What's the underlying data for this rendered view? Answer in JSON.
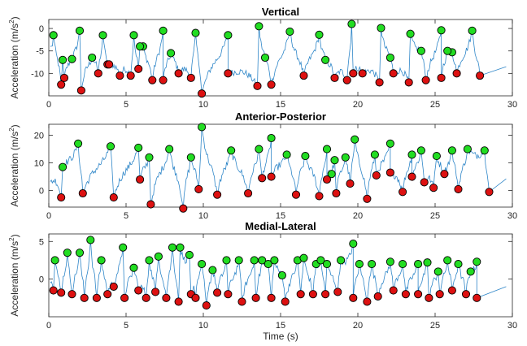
{
  "colors": {
    "signal": "#2e86c8",
    "peak": "#22dd22",
    "trough": "#dd1111",
    "axis": "#262626"
  },
  "xlabel": "Time (s)",
  "chart_data": [
    {
      "type": "line",
      "title": "Vertical",
      "ylabel_main": "Acceleration (m/s",
      "ylabel_sup": "2",
      "ylabel_end": ")",
      "xlim": [
        0,
        30
      ],
      "ylim": [
        -15,
        2
      ],
      "xticks": [
        0,
        5,
        10,
        15,
        20,
        25,
        30
      ],
      "yticks": [
        -10,
        -5,
        0
      ],
      "series": [
        {
          "marker": "peak",
          "x": [
            0.3,
            2.0,
            3.5,
            5.5,
            7.4,
            9.5,
            11.6,
            13.6,
            15.6,
            17.5,
            19.6,
            21.5,
            23.4,
            25.4,
            27.4,
            0.9,
            2.8,
            6.1,
            7.9,
            14.0,
            17.9,
            22.1,
            24.1,
            26.1,
            1.5,
            5.9,
            25.8
          ],
          "y": [
            -1.5,
            -0.5,
            -1.5,
            -1.5,
            -0.5,
            -1.0,
            -1.5,
            0.5,
            -0.7,
            -1.4,
            1.0,
            0.1,
            -1.2,
            -0.4,
            -0.5,
            -7.0,
            -6.5,
            -4.0,
            -5.5,
            -6.5,
            -7.0,
            -6.5,
            -5.0,
            -5.3,
            -6.8,
            -4.0,
            -5.0
          ]
        },
        {
          "marker": "trough",
          "x": [
            0.8,
            2.1,
            3.2,
            3.8,
            4.6,
            5.3,
            5.8,
            6.7,
            7.4,
            8.4,
            9.2,
            9.9,
            11.6,
            13.5,
            14.4,
            16.5,
            18.5,
            19.3,
            19.7,
            20.3,
            21.4,
            22.3,
            23.3,
            24.4,
            25.4,
            26.4,
            27.9,
            1.0,
            3.9
          ],
          "y": [
            -12.5,
            -13.8,
            -10.0,
            -8.0,
            -10.5,
            -10.5,
            -9.0,
            -11.5,
            -11.5,
            -10.0,
            -11.0,
            -14.5,
            -10.0,
            -12.8,
            -12.5,
            -10.5,
            -11.0,
            -11.5,
            -10.0,
            -10.0,
            -12.0,
            -10.0,
            -12.0,
            -11.5,
            -11.0,
            -10.0,
            -10.5,
            -11.0,
            -8.0
          ]
        }
      ]
    },
    {
      "type": "line",
      "title": "Anterior-Posterior",
      "ylabel_main": "Acceleration (m/s",
      "ylabel_sup": "2",
      "ylabel_end": ")",
      "xlim": [
        0,
        30
      ],
      "ylim": [
        -6,
        24
      ],
      "xticks": [
        0,
        5,
        10,
        15,
        20,
        25,
        30
      ],
      "yticks": [
        0,
        10,
        20
      ],
      "series": [
        {
          "marker": "peak",
          "x": [
            0.9,
            1.9,
            4.0,
            5.8,
            6.5,
            7.8,
            9.2,
            9.9,
            11.8,
            13.6,
            14.4,
            15.4,
            16.6,
            18.0,
            18.5,
            19.2,
            19.8,
            21.1,
            22.1,
            23.5,
            24.1,
            25.1,
            26.1,
            27.1,
            28.2,
            18.3
          ],
          "y": [
            8.5,
            17.0,
            16.0,
            15.5,
            12.0,
            15.0,
            12.0,
            23.0,
            14.5,
            15.0,
            19.0,
            13.0,
            12.5,
            15.0,
            11.0,
            12.0,
            18.5,
            13.0,
            17.0,
            13.0,
            14.5,
            12.5,
            14.5,
            15.0,
            14.5,
            6.0
          ]
        },
        {
          "marker": "trough",
          "x": [
            0.8,
            2.2,
            4.2,
            5.9,
            6.6,
            8.7,
            9.7,
            10.9,
            12.9,
            13.8,
            14.4,
            16.0,
            17.5,
            18.0,
            18.6,
            19.5,
            20.6,
            21.2,
            22.1,
            22.9,
            23.5,
            24.3,
            24.9,
            25.6,
            26.5,
            28.5
          ],
          "y": [
            -2.5,
            -1.0,
            -2.5,
            4.0,
            -5.0,
            -6.5,
            0.5,
            -1.5,
            -1.0,
            4.5,
            5.0,
            -1.5,
            -2.0,
            4.0,
            -1.0,
            2.5,
            -3.0,
            5.5,
            6.5,
            -0.5,
            5.0,
            3.0,
            1.0,
            6.0,
            0.5,
            -0.5
          ]
        }
      ]
    },
    {
      "type": "line",
      "title": "Medial-Lateral",
      "ylabel_main": "Acceleration (m/s",
      "ylabel_sup": "2",
      "ylabel_end": ")",
      "xlim": [
        0,
        30
      ],
      "ylim": [
        -5,
        6
      ],
      "xticks": [
        0,
        5,
        10,
        15,
        20,
        25,
        30
      ],
      "yticks": [
        0,
        5
      ],
      "series": [
        {
          "marker": "peak",
          "x": [
            0.4,
            1.2,
            2.0,
            2.7,
            3.4,
            4.8,
            5.5,
            6.5,
            7.1,
            8.0,
            8.5,
            9.1,
            9.9,
            10.6,
            11.5,
            12.3,
            13.3,
            13.8,
            14.2,
            14.6,
            15.1,
            16.1,
            16.5,
            17.3,
            17.6,
            18.0,
            18.9,
            19.7,
            20.1,
            20.9,
            22.1,
            22.9,
            23.9,
            24.5,
            25.2,
            25.8,
            26.5,
            27.3,
            27.7
          ],
          "y": [
            2.5,
            3.5,
            3.5,
            5.2,
            2.5,
            4.2,
            1.5,
            2.5,
            3.0,
            4.2,
            4.2,
            3.2,
            2.0,
            1.2,
            2.5,
            2.5,
            2.5,
            2.5,
            2.0,
            2.5,
            0.5,
            2.5,
            2.8,
            2.0,
            2.5,
            2.0,
            2.5,
            4.7,
            2.0,
            2.0,
            2.3,
            2.0,
            2.0,
            2.2,
            1.0,
            2.5,
            2.0,
            1.0,
            2.3
          ]
        },
        {
          "marker": "trough",
          "x": [
            0.3,
            0.8,
            1.5,
            2.3,
            3.1,
            3.8,
            4.2,
            4.9,
            5.8,
            6.3,
            6.9,
            7.6,
            8.4,
            9.2,
            9.5,
            10.2,
            10.9,
            11.6,
            12.5,
            13.4,
            14.4,
            15.3,
            16.3,
            17.1,
            17.9,
            18.7,
            19.7,
            20.6,
            21.3,
            22.3,
            23.1,
            23.9,
            24.6,
            25.3,
            26.1,
            27.0,
            27.7
          ],
          "y": [
            -1.5,
            -1.8,
            -2.0,
            -2.5,
            -2.5,
            -2.0,
            -1.0,
            -2.5,
            -1.5,
            -2.5,
            -1.7,
            -2.5,
            -3.0,
            -2.0,
            -2.5,
            -3.5,
            -1.8,
            -2.0,
            -3.0,
            -2.5,
            -2.5,
            -3.0,
            -2.0,
            -2.0,
            -2.0,
            -1.7,
            -2.5,
            -3.0,
            -2.3,
            -1.5,
            -2.0,
            -2.0,
            -2.5,
            -2.0,
            -1.5,
            -2.0,
            -2.5
          ]
        }
      ]
    }
  ]
}
